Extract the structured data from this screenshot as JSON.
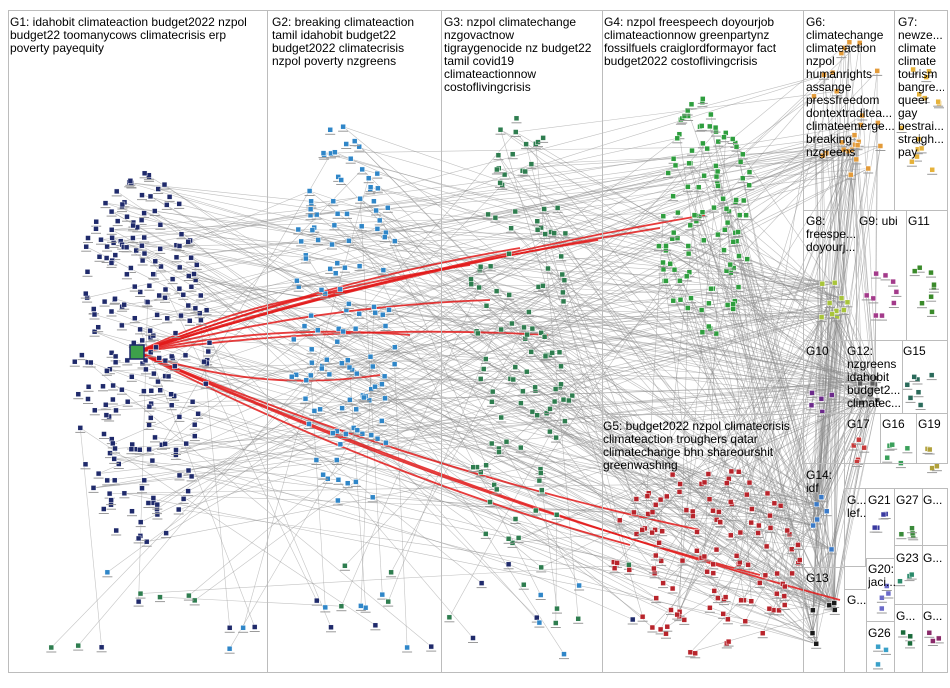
{
  "groups": [
    {
      "id": "G1",
      "label": "G1: idahobit climateaction budget2022 nzpol\nbudget22 toomanycows climatecrisis erp\npoverty payequity",
      "color": "#1f2a6b"
    },
    {
      "id": "G2",
      "label": "G2: breaking climateaction\ntamil idahobit budget22\nbudget2022 climatecrisis\nnzpol poverty nzgreens",
      "color": "#2f86c8"
    },
    {
      "id": "G3",
      "label": "G3: nzpol climatechange\nnzgovactnow\ntigraygenocide nz budget22\ntamil covid19\nclimateactionnow\ncostoflivingcrisis",
      "color": "#2e7d4f"
    },
    {
      "id": "G4",
      "label": "G4: nzpol freespeech doyourjob\nclimateactionnow greenpartynz\nfossilfuels craiglordformayor fact\nbudget2022 costoflivingcrisis",
      "color": "#2e9e3e"
    },
    {
      "id": "G5",
      "label": "G5: budget2022 nzpol climatecrisis\nclimateaction troughers qatar\nclimatechange bhn shareourshit\ngreenwashing",
      "color": "#b8242b"
    },
    {
      "id": "G6",
      "label": "G6:\nclimatechange\nclimateaction\nnzpol\nhumanrights\nassange\npressfreedom\ndontextraditea...\nclimateemerge...\nbreaking\nnzgreens",
      "color": "#e39b3a"
    },
    {
      "id": "G7",
      "label": "G7:\nnewze...\nclimate\nclimate\ntourism\nbangre...\nqueer\ngay\nbestrai...\nstraigh...\npay",
      "color": "#e6b23a"
    },
    {
      "id": "G8",
      "label": "G8:\nfreespe...\ndoyourj...",
      "color": "#a8c43a"
    },
    {
      "id": "G9",
      "label": "G9: ubi",
      "color": "#a33a8a"
    },
    {
      "id": "G10",
      "label": "G10",
      "color": "#6b2a8a"
    },
    {
      "id": "G11",
      "label": "G11",
      "color": "#3a8a2a"
    },
    {
      "id": "G12",
      "label": "G12:\nnzgreens\nidahobit\nbudget2...\nclimatec...",
      "color": "#5a5a5a"
    },
    {
      "id": "G13",
      "label": "G13",
      "color": "#1a1a1a"
    },
    {
      "id": "G14",
      "label": "G14:\nidf",
      "color": "#3a7ac8"
    },
    {
      "id": "G15",
      "label": "G15",
      "color": "#2a6a5a"
    },
    {
      "id": "G16",
      "label": "G16",
      "color": "#3aa05a"
    },
    {
      "id": "G17",
      "label": "G17",
      "color": "#c83a3a"
    },
    {
      "id": "G18",
      "label": "G...\nlef...",
      "color": "#8a3ab0"
    },
    {
      "id": "G19",
      "label": "G19",
      "color": "#b0a03a"
    },
    {
      "id": "G20",
      "label": "G20:\njaci...",
      "color": "#6a6ac8"
    },
    {
      "id": "G21",
      "label": "G21",
      "color": "#3a3aa0"
    },
    {
      "id": "G22",
      "label": "G...",
      "color": "#4a8a4a"
    },
    {
      "id": "G23",
      "label": "G23",
      "color": "#2a8a6a"
    },
    {
      "id": "G24",
      "label": "G...",
      "color": "#a05a2a"
    },
    {
      "id": "G25",
      "label": "G...",
      "color": "#c8a03a"
    },
    {
      "id": "G26",
      "label": "G26",
      "color": "#3aa0c8"
    },
    {
      "id": "G27",
      "label": "G27",
      "color": "#3a8a3a"
    },
    {
      "id": "G28",
      "label": "G...",
      "color": "#1a6a3a"
    },
    {
      "id": "G29",
      "label": "G...",
      "color": "#8a2a6a"
    },
    {
      "id": "G30",
      "label": "G...",
      "color": "#2a2a6a"
    },
    {
      "id": "G31",
      "label": "G...",
      "color": "#6a3a1a"
    }
  ],
  "colors": {
    "edge": "#8a8a8a",
    "strong_edge": "#e21a1a",
    "frame": "#bcbcbc",
    "background": "#ffffff"
  }
}
